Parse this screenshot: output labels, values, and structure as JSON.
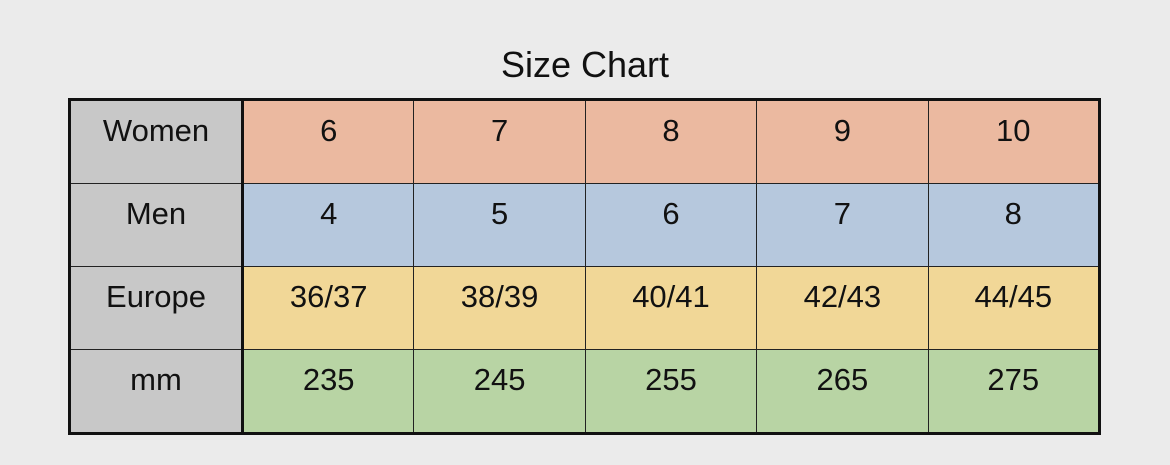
{
  "title": "Size Chart",
  "table": {
    "rows": [
      {
        "header": "Women",
        "cells": [
          6,
          7,
          8,
          9,
          10
        ]
      },
      {
        "header": "Men",
        "cells": [
          4,
          5,
          6,
          7,
          8
        ]
      },
      {
        "header": "Europe",
        "cells": [
          "36/37",
          "38/39",
          "40/41",
          "42/43",
          "44/45"
        ]
      },
      {
        "header": "mm",
        "cells": [
          235,
          245,
          255,
          265,
          275
        ]
      }
    ]
  }
}
